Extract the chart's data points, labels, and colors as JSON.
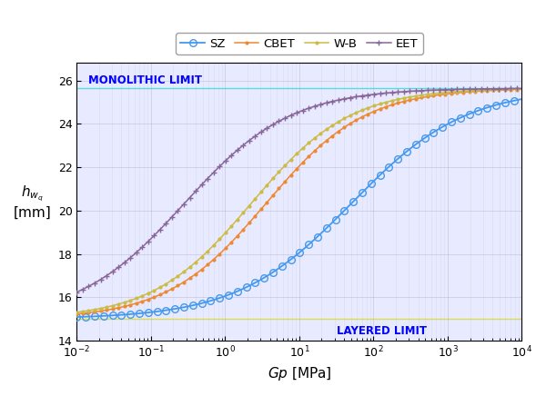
{
  "xlabel": "$Gp$ [MPa]",
  "ylabel": "$h_{w_q}$\n[mm]",
  "xlim_log": [
    -2,
    4
  ],
  "ylim": [
    14,
    26.8
  ],
  "yticks": [
    14,
    16,
    18,
    20,
    22,
    24,
    26
  ],
  "layered_limit": 15.0,
  "monolithic_limit": 25.65,
  "monolithic_label": "MONOLITHIC LIMIT",
  "layered_label": "LAYERED LIMIT",
  "annotation_color": "#0000FF",
  "mono_line_color": "#55DDDD",
  "layered_line_color": "#DDDD55",
  "curves": [
    {
      "label": "SZ",
      "color": "#4499EE",
      "marker": "o",
      "markerfacecolor": "none",
      "markeredgecolor": "#4499EE",
      "linewidth": 1.3,
      "markersize": 5.5,
      "shift_log": 1.7,
      "steepness": 1.3
    },
    {
      "label": "CBET",
      "color": "#EE8833",
      "marker": ".",
      "markerfacecolor": "#EE8833",
      "markeredgecolor": "#EE8833",
      "linewidth": 1.1,
      "markersize": 4,
      "shift_log": 0.55,
      "steepness": 1.5
    },
    {
      "label": "W-B",
      "color": "#CCBB44",
      "marker": ".",
      "markerfacecolor": "#CCBB44",
      "markeredgecolor": "#CCBB44",
      "linewidth": 1.1,
      "markersize": 4,
      "shift_log": 0.35,
      "steepness": 1.5
    },
    {
      "label": "EET",
      "color": "#886699",
      "marker": "+",
      "markerfacecolor": "#886699",
      "markeredgecolor": "#886699",
      "linewidth": 1.1,
      "markersize": 5,
      "shift_log": -0.55,
      "steepness": 1.4
    }
  ],
  "grid_color": "#9999BB",
  "grid_alpha": 0.35,
  "background_color": "#E8EAFF",
  "fig_background": "#FFFFFF"
}
